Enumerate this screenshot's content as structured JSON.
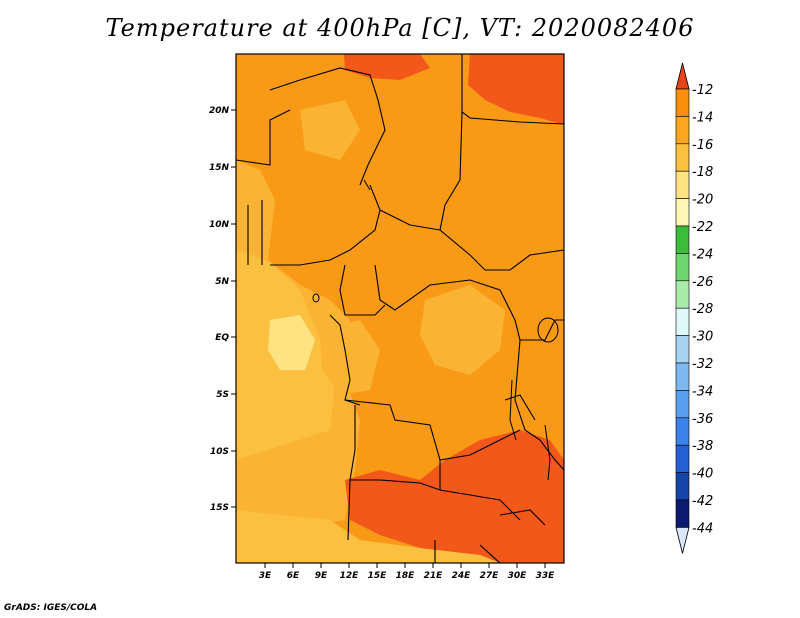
{
  "title": "Temperature at 400hPa [C], VT: 2020082406",
  "credit": "GrADS: IGES/COLA",
  "map": {
    "lon_labels": [
      "3E",
      "6E",
      "9E",
      "12E",
      "15E",
      "18E",
      "21E",
      "24E",
      "27E",
      "30E",
      "33E"
    ],
    "lat_labels": [
      "20N",
      "15N",
      "10N",
      "5N",
      "EQ",
      "5S",
      "10S",
      "15S"
    ]
  },
  "colorbar": {
    "labels": [
      "-12",
      "-14",
      "-16",
      "-18",
      "-20",
      "-22",
      "-24",
      "-26",
      "-28",
      "-30",
      "-32",
      "-34",
      "-36",
      "-38",
      "-40",
      "-42",
      "-44"
    ],
    "colors": [
      "#f2581a",
      "#f98d0c",
      "#fba61e",
      "#fcc040",
      "#fde382",
      "#fff6b8",
      "#3bbd3b",
      "#6fd66f",
      "#a8eaa8",
      "#e0f8f8",
      "#a8d4f2",
      "#7fb8ef",
      "#5a9ef0",
      "#3b82ea",
      "#2361d4",
      "#1545a8",
      "#0c1b70",
      "#d9e6fb"
    ],
    "top_arrow_color": "#e8431a",
    "bottom_arrow_color": "#d9e6fb"
  }
}
